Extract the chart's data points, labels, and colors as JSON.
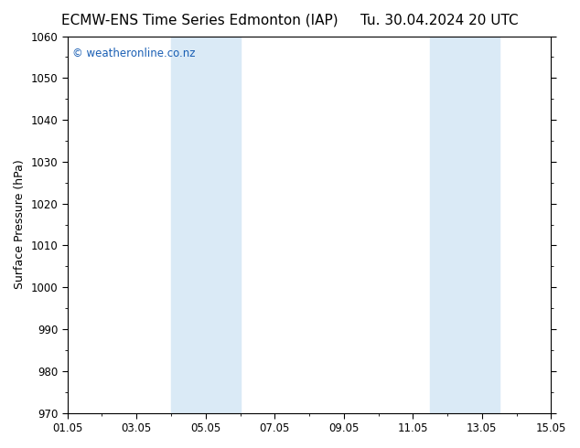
{
  "title_left": "ECMW-ENS Time Series Edmonton (IAP)",
  "title_right": "Tu. 30.04.2024 20 UTC",
  "ylabel": "Surface Pressure (hPa)",
  "ylim": [
    970,
    1060
  ],
  "yticks": [
    970,
    980,
    990,
    1000,
    1010,
    1020,
    1030,
    1040,
    1050,
    1060
  ],
  "xlim_start": 0,
  "xlim_end": 14,
  "xtick_positions": [
    0,
    2,
    4,
    6,
    8,
    10,
    12,
    14
  ],
  "xtick_labels": [
    "01.05",
    "03.05",
    "05.05",
    "07.05",
    "09.05",
    "11.05",
    "13.05",
    "15.05"
  ],
  "minor_xtick_positions": [
    0,
    1,
    2,
    3,
    4,
    5,
    6,
    7,
    8,
    9,
    10,
    11,
    12,
    13,
    14
  ],
  "shaded_bands": [
    {
      "x_start": 3.0,
      "x_end": 5.0
    },
    {
      "x_start": 10.5,
      "x_end": 12.5
    }
  ],
  "band_color": "#daeaf6",
  "watermark": "© weatheronline.co.nz",
  "watermark_color": "#1a5fb4",
  "background_color": "#ffffff",
  "plot_bg_color": "#ffffff",
  "title_fontsize": 11,
  "axis_label_fontsize": 9,
  "tick_fontsize": 8.5,
  "watermark_fontsize": 8.5
}
